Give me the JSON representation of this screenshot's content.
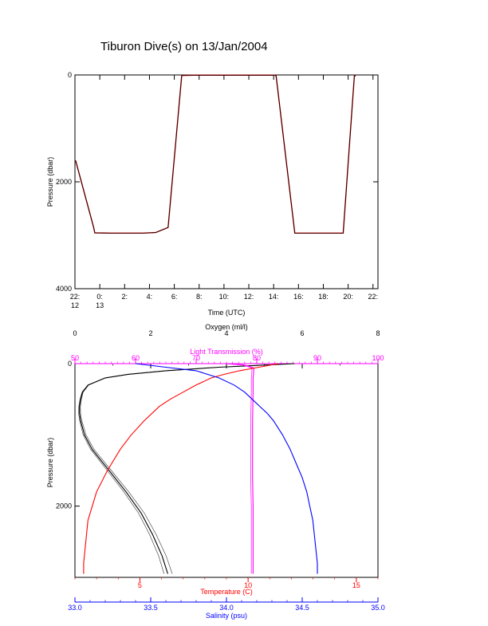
{
  "title": "Tiburon Dive(s) on 13/Jan/2004",
  "colors": {
    "axis": "#000000",
    "trace": "#000000",
    "trace_overlay": "#cc0000",
    "oxygen": "#000000",
    "light_transmission": "#ff00ff",
    "temperature": "#ff0000",
    "salinity": "#0000ff"
  },
  "chart_data": [
    {
      "type": "line",
      "title": "Tiburon Dive(s) on 13/Jan/2004",
      "xlabel": "Time (UTC)",
      "ylabel": "Pressure (dbar)",
      "x_tick_labels": [
        {
          "top": "22:",
          "bottom": "12"
        },
        {
          "top": "0:",
          "bottom": "13"
        },
        {
          "top": "2:",
          "bottom": ""
        },
        {
          "top": "4:",
          "bottom": ""
        },
        {
          "top": "6:",
          "bottom": ""
        },
        {
          "top": "8:",
          "bottom": ""
        },
        {
          "top": "10:",
          "bottom": ""
        },
        {
          "top": "12:",
          "bottom": ""
        },
        {
          "top": "14:",
          "bottom": ""
        },
        {
          "top": "16:",
          "bottom": ""
        },
        {
          "top": "18:",
          "bottom": ""
        },
        {
          "top": "20:",
          "bottom": ""
        },
        {
          "top": "22:",
          "bottom": ""
        }
      ],
      "y_ticks": [
        0,
        2000,
        4000
      ],
      "ylim": [
        4000,
        0
      ],
      "xlim_hours": [
        22,
        46.4
      ],
      "series": [
        {
          "x_hours": [
            22.05,
            23.5,
            23.6,
            24.85,
            25.5,
            26.6,
            27.5,
            28.5,
            29.5,
            30.6,
            31.5,
            32.5,
            33.5,
            34.5,
            35.5,
            36.5,
            37.5,
            38.1,
            38.2,
            39.7,
            40.5,
            41.2,
            41.8,
            42.8,
            43.6,
            44.5,
            44.6
          ],
          "pressure": [
            1600,
            2850,
            2955,
            2960,
            2960,
            2960,
            2960,
            2950,
            2855,
            10,
            5,
            5,
            5,
            5,
            5,
            5,
            5,
            5,
            20,
            2960,
            2960,
            2960,
            2960,
            2960,
            2960,
            20,
            15
          ]
        }
      ]
    },
    {
      "type": "line",
      "ylabel": "Pressure (dbar)",
      "y_ticks": [
        0,
        2000
      ],
      "ylim": [
        3000,
        0
      ],
      "axes": [
        {
          "label": "Oxygen (ml/l)",
          "position": "top",
          "range": [
            0,
            8
          ],
          "ticks": [
            0,
            2,
            4,
            6,
            8
          ],
          "color": "#000000"
        },
        {
          "label": "Light Transmission (%)",
          "position": "top",
          "range": [
            50,
            100
          ],
          "ticks": [
            50,
            60,
            70,
            80,
            90,
            100
          ],
          "color": "#ff00ff"
        },
        {
          "label": "Temperature (C)",
          "position": "bottom",
          "range": [
            2,
            16
          ],
          "ticks": [
            5,
            10,
            15
          ],
          "color": "#ff0000"
        },
        {
          "label": "Salinity (psu)",
          "position": "bottom",
          "range": [
            33.0,
            35.0
          ],
          "ticks": [
            "33.0",
            "33.5",
            "34.0",
            "34.5",
            "35.0"
          ],
          "color": "#0000ff"
        }
      ],
      "series": [
        {
          "name": "Oxygen",
          "axis": "Oxygen (ml/l)",
          "pressure": [
            0,
            20,
            50,
            100,
            150,
            200,
            300,
            400,
            500,
            600,
            700,
            800,
            1000,
            1200,
            1500,
            1800,
            2100,
            2400,
            2700,
            2950
          ],
          "values": [
            5.8,
            5.0,
            3.8,
            2.4,
            1.4,
            0.8,
            0.35,
            0.2,
            0.15,
            0.12,
            0.12,
            0.15,
            0.25,
            0.45,
            0.9,
            1.35,
            1.75,
            2.05,
            2.3,
            2.45
          ]
        },
        {
          "name": "Light Transmission",
          "axis": "Light Transmission (%)",
          "pressure": [
            0,
            20,
            60,
            120,
            200,
            400,
            800,
            1200,
            1600,
            2000,
            2400,
            2800,
            2950
          ],
          "values": [
            75,
            78,
            79.5,
            79.5,
            79.4,
            79.4,
            79.3,
            79.3,
            79.3,
            79.4,
            79.4,
            79.4,
            79.4
          ]
        },
        {
          "name": "Temperature",
          "axis": "Temperature (C)",
          "pressure": [
            0,
            50,
            100,
            150,
            200,
            300,
            400,
            500,
            600,
            800,
            1000,
            1200,
            1500,
            1800,
            2000,
            2200,
            2500,
            2800,
            2950
          ],
          "values": [
            11.4,
            10.5,
            9.6,
            8.9,
            8.3,
            7.6,
            7.0,
            6.4,
            5.9,
            5.2,
            4.6,
            4.1,
            3.5,
            3.0,
            2.8,
            2.6,
            2.5,
            2.4,
            2.4
          ]
        },
        {
          "name": "Salinity",
          "axis": "Salinity (psu)",
          "pressure": [
            0,
            50,
            100,
            200,
            300,
            400,
            500,
            600,
            700,
            800,
            1000,
            1200,
            1400,
            1600,
            1800,
            2000,
            2200,
            2400,
            2600,
            2800,
            2950
          ],
          "values": [
            33.4,
            33.6,
            33.8,
            33.95,
            34.05,
            34.12,
            34.17,
            34.22,
            34.27,
            34.31,
            34.37,
            34.42,
            34.46,
            34.5,
            34.53,
            34.55,
            34.57,
            34.58,
            34.59,
            34.6,
            34.6
          ]
        }
      ]
    }
  ]
}
